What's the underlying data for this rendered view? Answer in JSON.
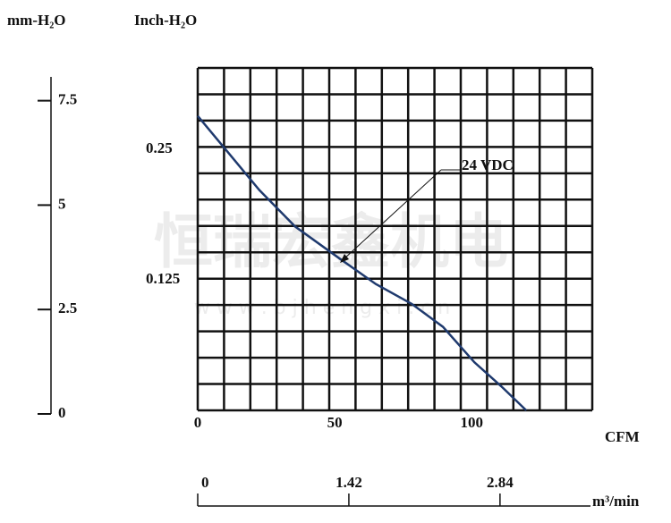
{
  "chart_data": {
    "type": "line",
    "x_label": "CFM",
    "y_label": "Inch-H₂O",
    "xlim": [
      0,
      144
    ],
    "xticks": [
      0,
      50,
      100
    ],
    "ylim": [
      0,
      0.328
    ],
    "yticks": [
      0.25,
      0.125
    ],
    "grid": true,
    "grid_columns": 15,
    "grid_rows": 13,
    "x": [
      0,
      11.1,
      22.5,
      35.6,
      52.0,
      65.0,
      78.1,
      89.5,
      101.0,
      110.8,
      119.9
    ],
    "series": [
      {
        "name": "24 VDC",
        "color": "#1f3a6e",
        "values": [
          0.282,
          0.247,
          0.211,
          0.176,
          0.145,
          0.121,
          0.102,
          0.08,
          0.046,
          0.023,
          0
        ]
      }
    ],
    "mm_axis": {
      "label": "mm-H₂O",
      "lim": [
        0,
        8.07
      ],
      "ticks": [
        0,
        2.5,
        5,
        7.5
      ]
    },
    "m3_axis": {
      "label": "m³/min",
      "lim": [
        0,
        3.69
      ],
      "ticks": [
        0,
        1.42,
        2.84
      ]
    },
    "watermark": [
      "恒瑞宏鑫机电",
      "w w w . b j h e n g x i . c n"
    ]
  }
}
